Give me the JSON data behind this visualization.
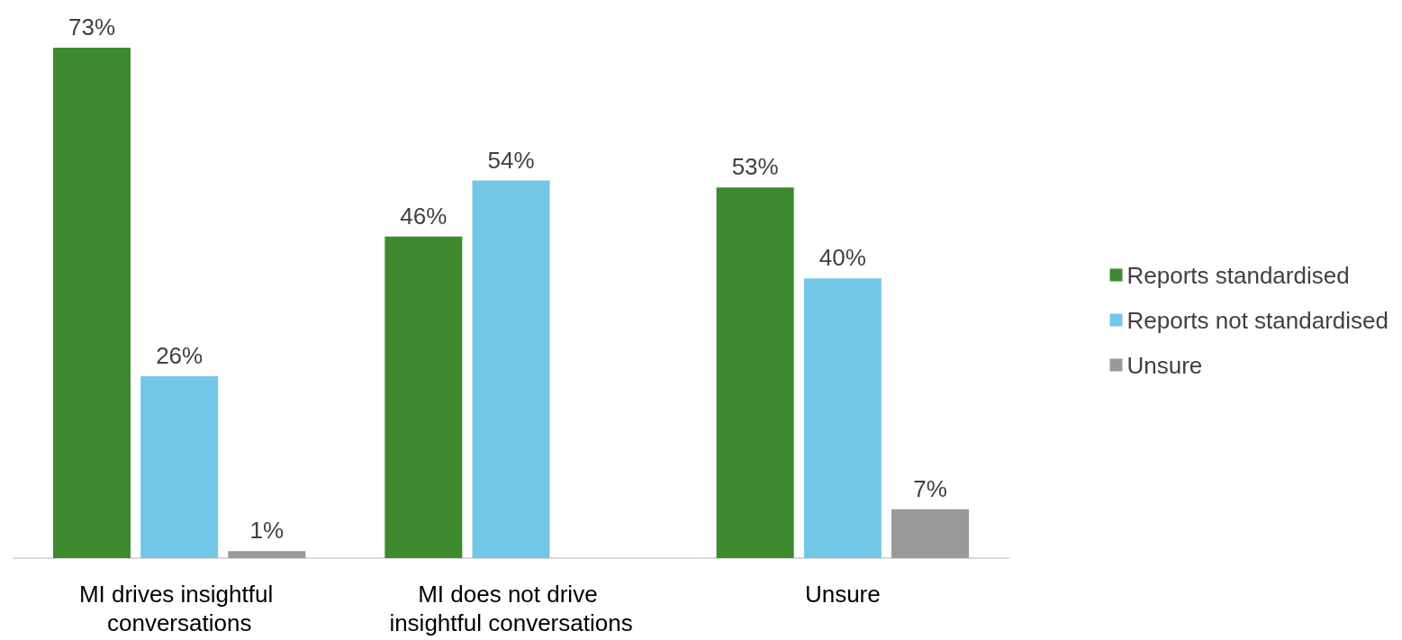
{
  "chart_data": {
    "type": "bar",
    "categories": [
      "MI drives insightful conversations",
      "MI does not drive insightful conversations",
      "Unsure"
    ],
    "series": [
      {
        "name": "Reports standardised",
        "color": "#3d8a2f",
        "values": [
          73,
          46,
          53
        ],
        "value_labels": [
          "73%",
          "46%",
          "53%"
        ]
      },
      {
        "name": "Reports not standardised",
        "color": "#73c7e6",
        "values": [
          26,
          54,
          40
        ],
        "value_labels": [
          "26%",
          "54%",
          "40%"
        ]
      },
      {
        "name": "Unsure",
        "color": "#999999",
        "values": [
          1,
          null,
          7
        ],
        "value_labels": [
          "1%",
          null,
          "7%"
        ]
      }
    ],
    "legend": "right"
  }
}
